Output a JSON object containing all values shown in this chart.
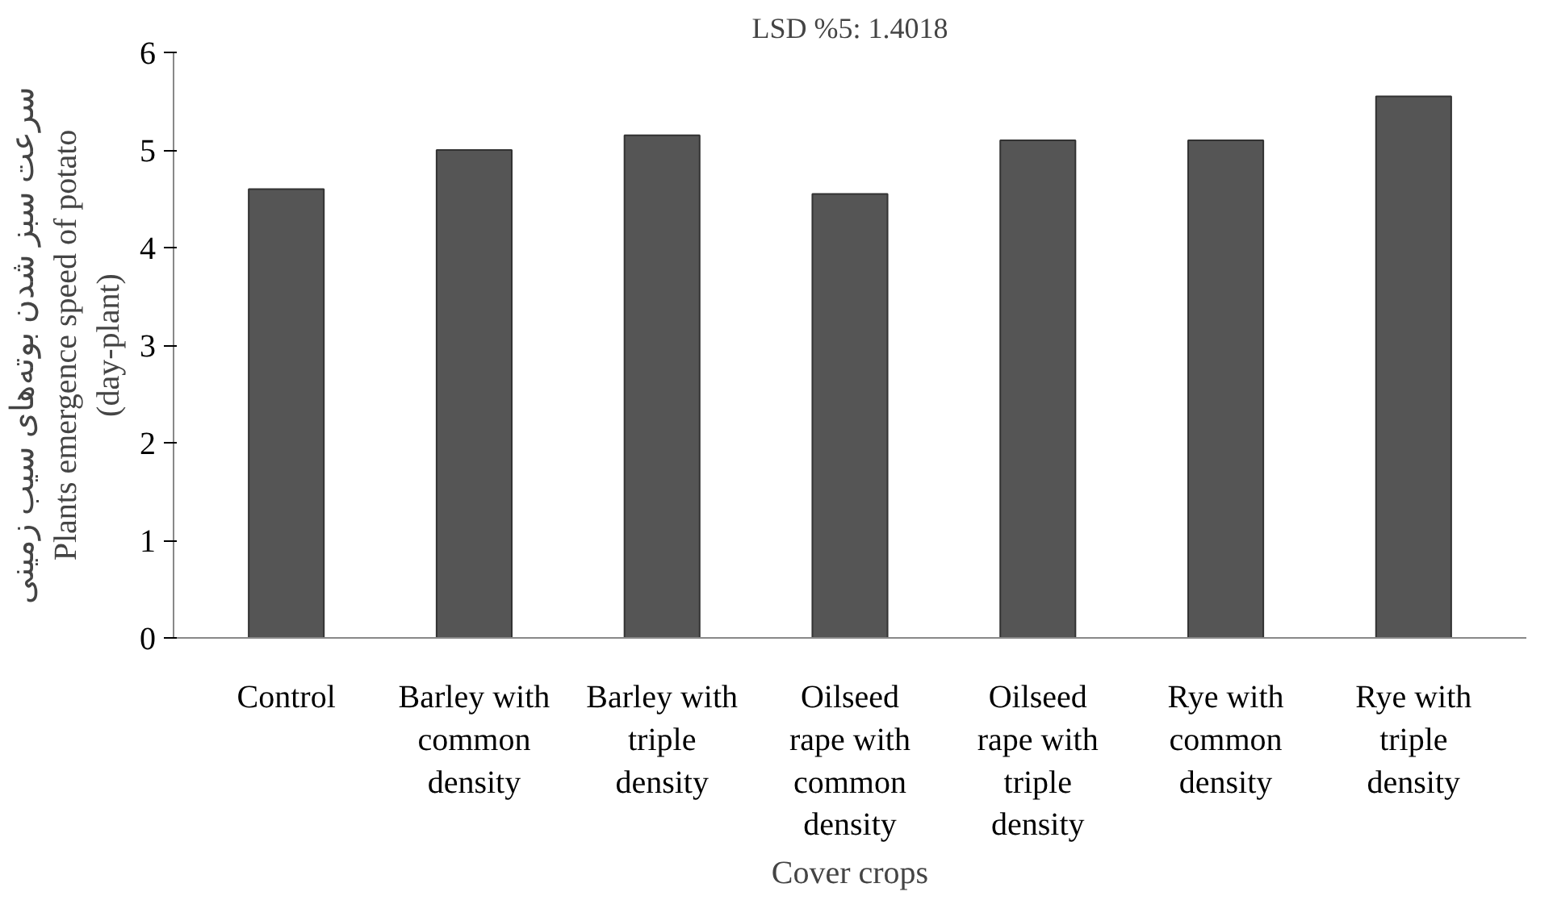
{
  "chart_data": {
    "type": "bar",
    "title": "LSD %5: 1.4018",
    "xlabel": "Cover crops",
    "ylabel": "سرعت سبز شدن بوته‌های سیب زمینی\nPlants emergence speed of potato\n(day-plant)",
    "categories": [
      "Control",
      "Barley with common density",
      "Barley with triple density",
      "Oilseed rape with common density",
      "Oilseed rape with triple density",
      "Rye with common density",
      "Rye with triple density"
    ],
    "values": [
      4.6,
      5.0,
      5.15,
      4.55,
      5.1,
      5.1,
      5.55
    ],
    "color": "#555555",
    "ylim": [
      0,
      6
    ],
    "yticks": [
      0,
      1,
      2,
      3,
      4,
      5,
      6
    ],
    "grid": false
  }
}
